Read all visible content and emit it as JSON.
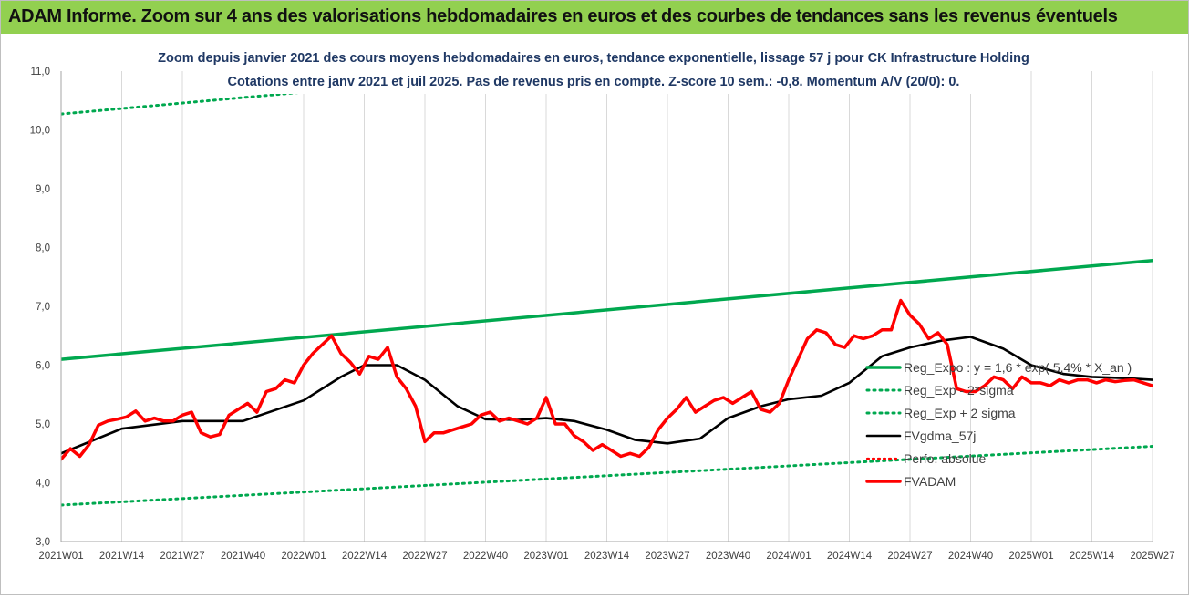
{
  "banner": {
    "title": "ADAM Informe. Zoom sur 4 ans des valorisations hebdomadaires en euros et des courbes de tendances sans les revenus éventuels"
  },
  "colors": {
    "banner_bg": "#92d050",
    "title_text": "#1f3864",
    "trend": "#00a84f",
    "smooth": "#000000",
    "price": "#ff0000",
    "perf": "#ff0000"
  },
  "chart_data": {
    "type": "line",
    "title": "Zoom depuis janvier 2021 des cours moyens hebdomadaires en euros, tendance exponentielle, lissage 57 j pour CK Infrastructure Holding",
    "subtitle": "Cotations entre janv 2021 et juil 2025. Pas de revenus pris en compte. Z-score 10 sem.: -0,8. Momentum A/V (20/0): 0.",
    "ylim": [
      3.0,
      11.0
    ],
    "yticks": [
      "3,0",
      "4,0",
      "5,0",
      "6,0",
      "7,0",
      "8,0",
      "9,0",
      "10,0",
      "11,0"
    ],
    "xticks": [
      "2021W01",
      "2021W14",
      "2021W27",
      "2021W40",
      "2022W01",
      "2022W14",
      "2022W27",
      "2022W40",
      "2023W01",
      "2023W14",
      "2023W27",
      "2023W40",
      "2024W01",
      "2024W14",
      "2024W27",
      "2024W40",
      "2025W01",
      "2025W14",
      "2025W27"
    ],
    "grid": "vertical",
    "legend_position": "right",
    "legend": [
      {
        "label": "Reg_Expo : y = 1,6 * exp( 5,4% *  X_an )",
        "style": "solid-green"
      },
      {
        "label": "Reg_Exp - 2*sigma",
        "style": "dotted-green"
      },
      {
        "label": "Reg_Exp + 2 sigma",
        "style": "dotted-green"
      },
      {
        "label": "FVgdma_57j",
        "style": "solid-black"
      },
      {
        "label": "Perfo. absolue",
        "style": "dotted-red"
      },
      {
        "label": "FVADAM",
        "style": "solid-red"
      }
    ],
    "series": [
      {
        "name": "Reg_Expo : y = 1,6 * exp( 5,4% *  X_an )",
        "x": [
          0,
          234
        ],
        "values": [
          6.1,
          7.78
        ]
      },
      {
        "name": "Reg_Exp - 2*sigma",
        "x": [
          0,
          234
        ],
        "values": [
          3.62,
          4.62
        ]
      },
      {
        "name": "Reg_Exp + 2 sigma",
        "x": [
          0,
          234
        ],
        "values": [
          10.27,
          11.95
        ]
      },
      {
        "name": "FVgdma_57j",
        "x": [
          0,
          13,
          26,
          39,
          52,
          60,
          65,
          72,
          78,
          85,
          91,
          98,
          104,
          110,
          117,
          123,
          130,
          137,
          143,
          150,
          156,
          163,
          169,
          176,
          182,
          189,
          195,
          202,
          208,
          215,
          221,
          228,
          234
        ],
        "values": [
          4.5,
          4.92,
          5.05,
          5.05,
          5.4,
          5.8,
          6.0,
          6.0,
          5.75,
          5.3,
          5.08,
          5.07,
          5.1,
          5.05,
          4.9,
          4.73,
          4.67,
          4.75,
          5.1,
          5.3,
          5.42,
          5.48,
          5.7,
          6.15,
          6.3,
          6.42,
          6.48,
          6.28,
          6.0,
          5.85,
          5.8,
          5.78,
          5.75
        ]
      },
      {
        "name": "FVADAM",
        "x": [
          0,
          2,
          4,
          6,
          8,
          10,
          12,
          14,
          16,
          18,
          20,
          22,
          24,
          26,
          28,
          30,
          32,
          34,
          36,
          38,
          40,
          42,
          44,
          46,
          48,
          50,
          52,
          54,
          56,
          58,
          60,
          62,
          64,
          66,
          68,
          70,
          72,
          74,
          76,
          78,
          80,
          82,
          84,
          86,
          88,
          90,
          92,
          94,
          96,
          98,
          100,
          102,
          104,
          106,
          108,
          110,
          112,
          114,
          116,
          118,
          120,
          122,
          124,
          126,
          128,
          130,
          132,
          134,
          136,
          138,
          140,
          142,
          144,
          146,
          148,
          150,
          152,
          154,
          156,
          158,
          160,
          162,
          164,
          166,
          168,
          170,
          172,
          174,
          176,
          178,
          180,
          182,
          184,
          186,
          188,
          190,
          192,
          194,
          196,
          198,
          200,
          202,
          204,
          206,
          208,
          210,
          212,
          214,
          216,
          218,
          220,
          222,
          224,
          226,
          228,
          230,
          232,
          234
        ],
        "values": [
          4.4,
          4.58,
          4.45,
          4.65,
          4.98,
          5.05,
          5.08,
          5.12,
          5.22,
          5.05,
          5.1,
          5.05,
          5.05,
          5.15,
          5.2,
          4.85,
          4.78,
          4.82,
          5.15,
          5.25,
          5.35,
          5.2,
          5.55,
          5.6,
          5.75,
          5.7,
          6.0,
          6.2,
          6.35,
          6.5,
          6.2,
          6.05,
          5.85,
          6.15,
          6.1,
          6.3,
          5.8,
          5.6,
          5.3,
          4.7,
          4.85,
          4.85,
          4.9,
          4.95,
          5.0,
          5.15,
          5.2,
          5.05,
          5.1,
          5.05,
          5.0,
          5.1,
          5.45,
          5.0,
          5.0,
          4.8,
          4.7,
          4.55,
          4.65,
          4.55,
          4.45,
          4.5,
          4.45,
          4.6,
          4.9,
          5.1,
          5.25,
          5.45,
          5.2,
          5.3,
          5.4,
          5.45,
          5.35,
          5.45,
          5.55,
          5.25,
          5.2,
          5.35,
          5.75,
          6.1,
          6.45,
          6.6,
          6.55,
          6.35,
          6.3,
          6.5,
          6.45,
          6.5,
          6.6,
          6.6,
          7.1,
          6.85,
          6.7,
          6.45,
          6.55,
          6.35,
          5.6,
          5.55,
          5.55,
          5.65,
          5.8,
          5.75,
          5.6,
          5.8,
          5.7,
          5.7,
          5.65,
          5.75,
          5.7,
          5.75,
          5.75,
          5.7,
          5.75,
          5.72,
          5.74,
          5.75,
          5.7,
          5.65
        ]
      }
    ]
  }
}
